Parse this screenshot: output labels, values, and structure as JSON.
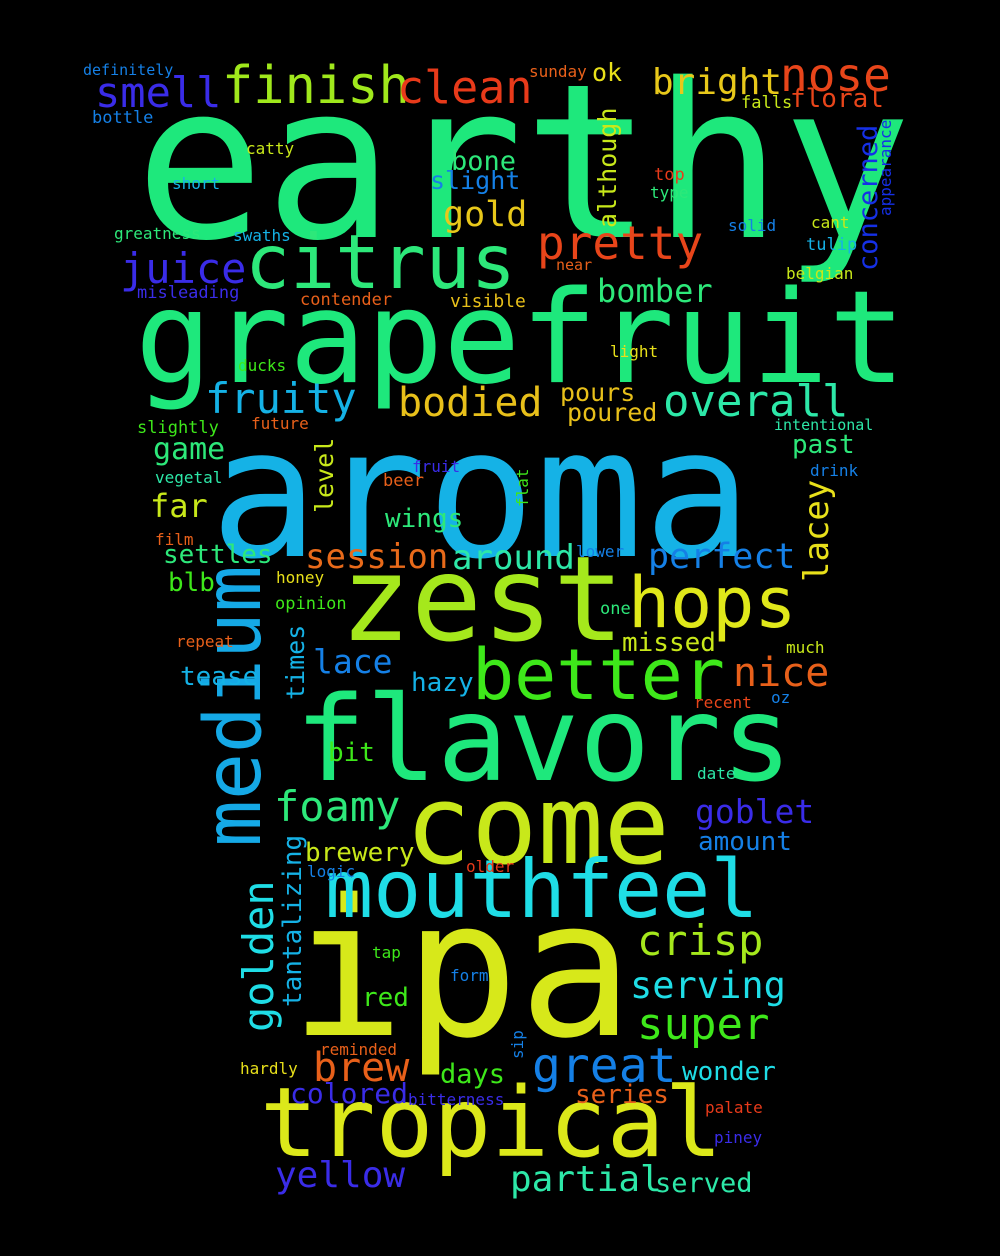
{
  "words": [
    {
      "text": "earthy",
      "color": "#1ee87c"
    },
    {
      "text": "aroma",
      "color": "#15b2e6"
    },
    {
      "text": "ipa",
      "color": "#d7e81a"
    },
    {
      "text": "grapefruit",
      "color": "#1ee87c"
    },
    {
      "text": "zest",
      "color": "#a5e81c"
    },
    {
      "text": "flavors",
      "color": "#1ee87c"
    },
    {
      "text": "come",
      "color": "#c8e81a"
    },
    {
      "text": "mouthfeel",
      "color": "#1fdde6"
    },
    {
      "text": "tropical",
      "color": "#dce81a"
    },
    {
      "text": "citrus",
      "color": "#2de87a"
    },
    {
      "text": "medium",
      "color": "#15a9e6"
    },
    {
      "text": "hops",
      "color": "#e0e81a"
    },
    {
      "text": "better",
      "color": "#3ee81a"
    },
    {
      "text": "finish",
      "color": "#a0e81c"
    },
    {
      "text": "clean",
      "color": "#e83a1a"
    },
    {
      "text": "nose",
      "color": "#e8451a"
    },
    {
      "text": "smell",
      "color": "#3a2ce8"
    },
    {
      "text": "bright",
      "color": "#e8c81a"
    },
    {
      "text": "floral",
      "color": "#e8451a"
    },
    {
      "text": "pretty",
      "color": "#e8451a"
    },
    {
      "text": "juice",
      "color": "#3a2ce8"
    },
    {
      "text": "gold",
      "color": "#e8c81a"
    },
    {
      "text": "bone",
      "color": "#2de87a"
    },
    {
      "text": "slight",
      "color": "#1580e6"
    },
    {
      "text": "although",
      "color": "#c8e81a"
    },
    {
      "text": "ok",
      "color": "#e8e01a"
    },
    {
      "text": "concerned",
      "color": "#1530e6"
    },
    {
      "text": "bomber",
      "color": "#2de87a"
    },
    {
      "text": "fruity",
      "color": "#15b2e6"
    },
    {
      "text": "bodied",
      "color": "#e8c01a"
    },
    {
      "text": "overall",
      "color": "#2de8a8"
    },
    {
      "text": "pours",
      "color": "#e8c01a"
    },
    {
      "text": "poured",
      "color": "#e8c01a"
    },
    {
      "text": "game",
      "color": "#2de87a"
    },
    {
      "text": "far",
      "color": "#c8e81a"
    },
    {
      "text": "past",
      "color": "#2de87a"
    },
    {
      "text": "level",
      "color": "#c8e81a"
    },
    {
      "text": "lacey",
      "color": "#e8e01a"
    },
    {
      "text": "session",
      "color": "#e86a1a"
    },
    {
      "text": "around",
      "color": "#2de8a8"
    },
    {
      "text": "perfect",
      "color": "#1580e6"
    },
    {
      "text": "wings",
      "color": "#2de87a"
    },
    {
      "text": "settles",
      "color": "#2de87a"
    },
    {
      "text": "blb",
      "color": "#3ee81a"
    },
    {
      "text": "lace",
      "color": "#1580e6"
    },
    {
      "text": "nice",
      "color": "#e8601a"
    },
    {
      "text": "missed",
      "color": "#c8e81a"
    },
    {
      "text": "tease",
      "color": "#15b2e6"
    },
    {
      "text": "hazy",
      "color": "#15b2e6"
    },
    {
      "text": "times",
      "color": "#15b2e6"
    },
    {
      "text": "bit",
      "color": "#3ee81a"
    },
    {
      "text": "foamy",
      "color": "#2de87a"
    },
    {
      "text": "goblet",
      "color": "#3a2ce8"
    },
    {
      "text": "amount",
      "color": "#1580e6"
    },
    {
      "text": "brewery",
      "color": "#c8e81a"
    },
    {
      "text": "golden",
      "color": "#1fdde6"
    },
    {
      "text": "tantalizing",
      "color": "#15b2e6"
    },
    {
      "text": "crisp",
      "color": "#a5e81c"
    },
    {
      "text": "serving",
      "color": "#1fdde6"
    },
    {
      "text": "super",
      "color": "#3ee81a"
    },
    {
      "text": "red",
      "color": "#3ee81a"
    },
    {
      "text": "great",
      "color": "#1580e6"
    },
    {
      "text": "brew",
      "color": "#e8601a"
    },
    {
      "text": "days",
      "color": "#3ee81a"
    },
    {
      "text": "wonder",
      "color": "#1fdde6"
    },
    {
      "text": "colored",
      "color": "#3a2ce8"
    },
    {
      "text": "series",
      "color": "#e8601a"
    },
    {
      "text": "yellow",
      "color": "#3a2ce8"
    },
    {
      "text": "partial",
      "color": "#2de8a8"
    },
    {
      "text": "served",
      "color": "#2de8a8"
    },
    {
      "text": "definitely",
      "color": "#1580e6"
    },
    {
      "text": "bottle",
      "color": "#1580e6"
    },
    {
      "text": "catty",
      "color": "#c8e81a"
    },
    {
      "text": "short",
      "color": "#15b2e6"
    },
    {
      "text": "greatness",
      "color": "#2de87a"
    },
    {
      "text": "swaths",
      "color": "#15b2e6"
    },
    {
      "text": "misleading",
      "color": "#3a2ce8"
    },
    {
      "text": "contender",
      "color": "#e8601a"
    },
    {
      "text": "visible",
      "color": "#e8c01a"
    },
    {
      "text": "near",
      "color": "#e8601a"
    },
    {
      "text": "sunday",
      "color": "#e8601a"
    },
    {
      "text": "falls",
      "color": "#c8e81a"
    },
    {
      "text": "top",
      "color": "#e83a1a"
    },
    {
      "text": "type",
      "color": "#2de87a"
    },
    {
      "text": "solid",
      "color": "#1580e6"
    },
    {
      "text": "cant",
      "color": "#c8e81a"
    },
    {
      "text": "tulip",
      "color": "#15b2e6"
    },
    {
      "text": "belgian",
      "color": "#c8e81a"
    },
    {
      "text": "appearance",
      "color": "#1530e6"
    },
    {
      "text": "light",
      "color": "#e8e01a"
    },
    {
      "text": "ducks",
      "color": "#3ee81a"
    },
    {
      "text": "slightly",
      "color": "#3ee81a"
    },
    {
      "text": "future",
      "color": "#e8601a"
    },
    {
      "text": "intentional",
      "color": "#2de8a8"
    },
    {
      "text": "vegetal",
      "color": "#2de8a8"
    },
    {
      "text": "fruit",
      "color": "#3a2ce8"
    },
    {
      "text": "beer",
      "color": "#e8601a"
    },
    {
      "text": "flat",
      "color": "#3ee81a"
    },
    {
      "text": "drink",
      "color": "#1580e6"
    },
    {
      "text": "film",
      "color": "#e8601a"
    },
    {
      "text": "lower",
      "color": "#1580e6"
    },
    {
      "text": "honey",
      "color": "#e8e01a"
    },
    {
      "text": "opinion",
      "color": "#3ee81a"
    },
    {
      "text": "one",
      "color": "#2de87a"
    },
    {
      "text": "repeat",
      "color": "#e8601a"
    },
    {
      "text": "much",
      "color": "#c8e81a"
    },
    {
      "text": "recent",
      "color": "#e8451a"
    },
    {
      "text": "oz",
      "color": "#1580e6"
    },
    {
      "text": "date",
      "color": "#2de8a8"
    },
    {
      "text": "older",
      "color": "#e83a1a"
    },
    {
      "text": "logic",
      "color": "#1580e6"
    },
    {
      "text": "tap",
      "color": "#3ee81a"
    },
    {
      "text": "form",
      "color": "#1580e6"
    },
    {
      "text": "sip",
      "color": "#1580e6"
    },
    {
      "text": "reminded",
      "color": "#e8601a"
    },
    {
      "text": "hardly",
      "color": "#e8e01a"
    },
    {
      "text": "bitterness",
      "color": "#3a2ce8"
    },
    {
      "text": "palate",
      "color": "#e83a1a"
    },
    {
      "text": "piney",
      "color": "#3a2ce8"
    }
  ]
}
